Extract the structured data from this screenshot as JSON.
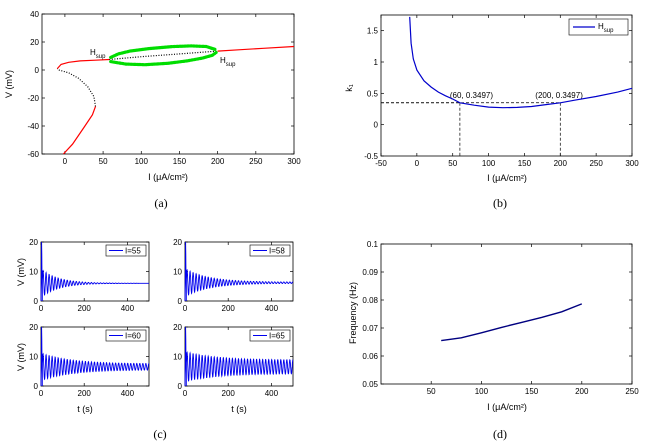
{
  "captions": [
    "(a)",
    "(b)",
    "(c)",
    "(d)"
  ],
  "chart_data": [
    {
      "id": "a",
      "type": "line",
      "title": "",
      "xlabel": "I (μA/cm²)",
      "ylabel": "V (mV)",
      "xlim": [
        -30,
        300
      ],
      "ylim": [
        -60,
        40
      ],
      "xticks": [
        0,
        50,
        100,
        150,
        200,
        250,
        300
      ],
      "yticks": [
        -60,
        -40,
        -20,
        0,
        20,
        40
      ],
      "series": [
        {
          "name": "stable-lower",
          "color": "#ff0000",
          "style": "solid",
          "points": [
            [
              -2,
              -60
            ],
            [
              10,
              -53
            ],
            [
              25,
              -41
            ],
            [
              36,
              -32
            ],
            [
              40,
              -26
            ]
          ]
        },
        {
          "name": "unstable-middle",
          "color": "#000000",
          "style": "dotted",
          "points": [
            [
              40,
              -26
            ],
            [
              38,
              -19
            ],
            [
              30,
              -12
            ],
            [
              18,
              -6
            ],
            [
              5,
              -2
            ],
            [
              -8,
              0
            ],
            [
              -10,
              1
            ]
          ]
        },
        {
          "name": "unstable-upper",
          "color": "#000000",
          "style": "dotted",
          "points": [
            [
              58,
              7.5
            ],
            [
              100,
              9.5
            ],
            [
              150,
              11.5
            ],
            [
              200,
              13.5
            ]
          ]
        },
        {
          "name": "stable-upper-1",
          "color": "#ff0000",
          "style": "solid",
          "points": [
            [
              -10,
              1
            ],
            [
              -5,
              4
            ],
            [
              5,
              5.5
            ],
            [
              20,
              6.5
            ],
            [
              40,
              7
            ],
            [
              58,
              7.5
            ]
          ]
        },
        {
          "name": "stable-upper-2",
          "color": "#ff0000",
          "style": "solid",
          "points": [
            [
              200,
              13.5
            ],
            [
              230,
              14.5
            ],
            [
              260,
              15.5
            ],
            [
              300,
              16.8
            ]
          ]
        },
        {
          "name": "limit-cycle-max",
          "color": "#00dd00",
          "style": "dotted",
          "points": [
            [
              60,
              9
            ],
            [
              70,
              11.5
            ],
            [
              85,
              13.5
            ],
            [
              110,
              15.3
            ],
            [
              140,
              16.7
            ],
            [
              165,
              17.2
            ],
            [
              185,
              16.8
            ],
            [
              198,
              14.5
            ]
          ]
        },
        {
          "name": "limit-cycle-min",
          "color": "#00dd00",
          "style": "dotted",
          "points": [
            [
              60,
              6
            ],
            [
              80,
              4.2
            ],
            [
              105,
              3.8
            ],
            [
              135,
              4.8
            ],
            [
              160,
              6.5
            ],
            [
              180,
              8.5
            ],
            [
              193,
              10.5
            ],
            [
              198,
              12.5
            ]
          ]
        }
      ],
      "annotations": [
        {
          "text": "H",
          "sub": "sup",
          "x": 34,
          "y": 11
        },
        {
          "text": "H",
          "sub": "sup",
          "x": 202,
          "y": 7
        }
      ]
    },
    {
      "id": "b",
      "type": "line",
      "xlabel": "I (μA/cm²)",
      "ylabel": "k₁",
      "xlim": [
        -50,
        300
      ],
      "ylim": [
        -0.5,
        1.75
      ],
      "xticks": [
        -50,
        0,
        50,
        100,
        150,
        200,
        250,
        300
      ],
      "yticks": [
        -0.5,
        0,
        0.5,
        1,
        1.5
      ],
      "legend": {
        "label": "H",
        "sub": "sup",
        "position": "top-right"
      },
      "series": [
        {
          "name": "Hsup",
          "color": "#0000cc",
          "points": [
            [
              -10,
              1.72
            ],
            [
              -8,
              1.3
            ],
            [
              -5,
              1.05
            ],
            [
              0,
              0.87
            ],
            [
              10,
              0.7
            ],
            [
              20,
              0.6
            ],
            [
              30,
              0.52
            ],
            [
              40,
              0.46
            ],
            [
              50,
              0.41
            ],
            [
              60,
              0.3497
            ],
            [
              80,
              0.31
            ],
            [
              100,
              0.28
            ],
            [
              120,
              0.27
            ],
            [
              140,
              0.275
            ],
            [
              160,
              0.29
            ],
            [
              180,
              0.32
            ],
            [
              200,
              0.3497
            ],
            [
              220,
              0.39
            ],
            [
              250,
              0.45
            ],
            [
              280,
              0.52
            ],
            [
              300,
              0.58
            ]
          ]
        }
      ],
      "markers": [
        {
          "label": "(60, 0.3497)",
          "x": 60,
          "y": 0.3497
        },
        {
          "label": "(200, 0.3497)",
          "x": 200,
          "y": 0.3497
        }
      ]
    },
    {
      "id": "c",
      "type": "line",
      "xlabel": "t (s)",
      "ylabel": "V (mV)",
      "xlim": [
        0,
        500
      ],
      "ylim": [
        0,
        20
      ],
      "xticks": [
        0,
        200,
        400
      ],
      "yticks": [
        0,
        10,
        20
      ],
      "panels": [
        {
          "legend": "I=55",
          "mean": 6.0,
          "amp0": 4.5,
          "tau": 80,
          "ampInf": 0.0
        },
        {
          "legend": "I=58",
          "mean": 6.2,
          "amp0": 4.5,
          "tau": 110,
          "ampInf": 0.2
        },
        {
          "legend": "I=60",
          "mean": 6.5,
          "amp0": 4.5,
          "tau": 140,
          "ampInf": 1.0
        },
        {
          "legend": "I=65",
          "mean": 6.5,
          "amp0": 5.0,
          "tau": 140,
          "ampInf": 2.3
        }
      ],
      "period": 14,
      "color": "#0000ee"
    },
    {
      "id": "d",
      "type": "line",
      "xlabel": "I (μA/cm²)",
      "ylabel": "Frequency (Hz)",
      "xlim": [
        0,
        250
      ],
      "ylim": [
        0.05,
        0.1
      ],
      "xticks": [
        50,
        100,
        150,
        200,
        250
      ],
      "yticks": [
        0.05,
        0.06,
        0.07,
        0.08,
        0.09,
        0.1
      ],
      "series": [
        {
          "name": "frequency",
          "color": "#000080",
          "points": [
            [
              60,
              0.0655
            ],
            [
              80,
              0.0665
            ],
            [
              100,
              0.0683
            ],
            [
              120,
              0.0702
            ],
            [
              140,
              0.072
            ],
            [
              160,
              0.0738
            ],
            [
              180,
              0.0758
            ],
            [
              200,
              0.0786
            ]
          ]
        }
      ]
    }
  ]
}
